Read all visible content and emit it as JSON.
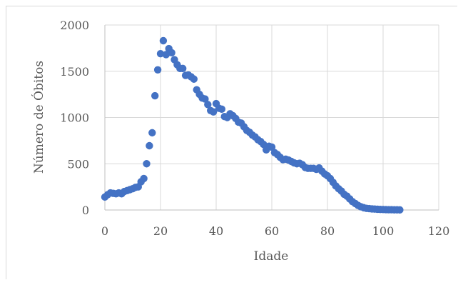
{
  "chart_data": {
    "type": "scatter",
    "title": "",
    "xlabel": "Idade",
    "ylabel": "Número de Óbitos",
    "xlim": [
      0,
      120
    ],
    "ylim": [
      0,
      2000
    ],
    "x_ticks": [
      "0",
      "20",
      "40",
      "60",
      "80",
      "100",
      "120"
    ],
    "y_ticks": [
      "0",
      "500",
      "1000",
      "1500",
      "2000"
    ],
    "grid": true,
    "legend": "none",
    "marker_color": "#4472c4",
    "series": [
      {
        "points": [
          [
            0,
            140
          ],
          [
            1,
            165
          ],
          [
            2,
            185
          ],
          [
            3,
            180
          ],
          [
            4,
            175
          ],
          [
            5,
            185
          ],
          [
            6,
            175
          ],
          [
            7,
            200
          ],
          [
            8,
            210
          ],
          [
            9,
            220
          ],
          [
            10,
            230
          ],
          [
            11,
            245
          ],
          [
            12,
            250
          ],
          [
            13,
            305
          ],
          [
            14,
            340
          ],
          [
            15,
            500
          ],
          [
            16,
            695
          ],
          [
            17,
            835
          ],
          [
            18,
            1235
          ],
          [
            19,
            1515
          ],
          [
            20,
            1690
          ],
          [
            21,
            1830
          ],
          [
            22,
            1680
          ],
          [
            23,
            1745
          ],
          [
            24,
            1700
          ],
          [
            25,
            1625
          ],
          [
            26,
            1570
          ],
          [
            27,
            1530
          ],
          [
            28,
            1530
          ],
          [
            29,
            1455
          ],
          [
            30,
            1460
          ],
          [
            31,
            1440
          ],
          [
            32,
            1415
          ],
          [
            33,
            1300
          ],
          [
            34,
            1250
          ],
          [
            35,
            1210
          ],
          [
            36,
            1200
          ],
          [
            37,
            1140
          ],
          [
            38,
            1075
          ],
          [
            39,
            1060
          ],
          [
            40,
            1150
          ],
          [
            41,
            1100
          ],
          [
            42,
            1090
          ],
          [
            43,
            1010
          ],
          [
            44,
            1000
          ],
          [
            45,
            1040
          ],
          [
            46,
            1020
          ],
          [
            47,
            990
          ],
          [
            48,
            950
          ],
          [
            49,
            940
          ],
          [
            50,
            900
          ],
          [
            51,
            860
          ],
          [
            52,
            840
          ],
          [
            53,
            810
          ],
          [
            54,
            790
          ],
          [
            55,
            760
          ],
          [
            56,
            740
          ],
          [
            57,
            710
          ],
          [
            58,
            650
          ],
          [
            59,
            690
          ],
          [
            60,
            680
          ],
          [
            61,
            620
          ],
          [
            62,
            600
          ],
          [
            63,
            570
          ],
          [
            64,
            545
          ],
          [
            65,
            550
          ],
          [
            66,
            540
          ],
          [
            67,
            525
          ],
          [
            68,
            510
          ],
          [
            69,
            500
          ],
          [
            70,
            505
          ],
          [
            71,
            490
          ],
          [
            72,
            460
          ],
          [
            73,
            450
          ],
          [
            74,
            450
          ],
          [
            75,
            450
          ],
          [
            76,
            440
          ],
          [
            77,
            455
          ],
          [
            78,
            420
          ],
          [
            79,
            390
          ],
          [
            80,
            370
          ],
          [
            81,
            340
          ],
          [
            82,
            300
          ],
          [
            83,
            260
          ],
          [
            84,
            230
          ],
          [
            85,
            205
          ],
          [
            86,
            170
          ],
          [
            87,
            150
          ],
          [
            88,
            120
          ],
          [
            89,
            90
          ],
          [
            90,
            70
          ],
          [
            91,
            50
          ],
          [
            92,
            35
          ],
          [
            93,
            25
          ],
          [
            94,
            18
          ],
          [
            95,
            15
          ],
          [
            96,
            12
          ],
          [
            97,
            10
          ],
          [
            98,
            8
          ],
          [
            99,
            6
          ],
          [
            100,
            5
          ],
          [
            101,
            4
          ],
          [
            102,
            3
          ],
          [
            103,
            3
          ],
          [
            104,
            2
          ],
          [
            105,
            2
          ],
          [
            106,
            1
          ]
        ]
      }
    ]
  }
}
